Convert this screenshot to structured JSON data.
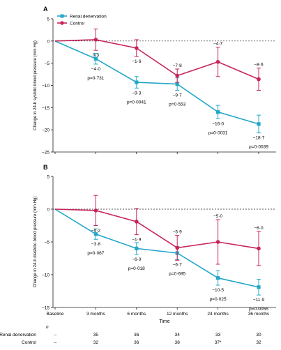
{
  "chart_data": [
    {
      "type": "line",
      "panel_label": "A",
      "ylabel": "Change in 24-h systolic blood pressure (mm Hg)",
      "ylim": [
        -25,
        5
      ],
      "yticks": [
        "5",
        "0",
        "−5",
        "−10",
        "−15",
        "−20",
        "−25"
      ],
      "ytick_values": [
        5,
        0,
        -5,
        -10,
        -15,
        -20,
        -25
      ],
      "reference_line": 0,
      "x": [
        0,
        1,
        2,
        3,
        4,
        5
      ],
      "series": [
        {
          "name": "Renal denervation",
          "color": "#22a7c8",
          "marker": "square",
          "values": [
            0,
            -4.0,
            -9.3,
            -9.7,
            -16.0,
            -18.7
          ],
          "errors": [
            0,
            1.2,
            1.3,
            1.4,
            1.5,
            2.0
          ],
          "labels": [
            "",
            "−4·0",
            "−9·3",
            "−9·7",
            "−16·0",
            "−18·7"
          ]
        },
        {
          "name": "Control",
          "color": "#c8245a",
          "marker": "circle",
          "values": [
            0,
            0.3,
            -1.6,
            -7.8,
            -4.7,
            -8.6
          ],
          "errors": [
            0,
            2.4,
            1.9,
            1.5,
            3.3,
            2.5
          ],
          "labels": [
            "",
            "0·3",
            "−1·6",
            "−7·8",
            "−4·7",
            "−8·6"
          ]
        }
      ],
      "p_values": [
        "",
        "p=0·731",
        "p=0·0041",
        "p=0·553",
        "p=0·0031",
        "p=0·0039"
      ]
    },
    {
      "type": "line",
      "panel_label": "B",
      "ylabel": "Change in 24-h diastolic blood pressure (mm Hg)",
      "ylim": [
        -15,
        5
      ],
      "yticks": [
        "5",
        "0",
        "−5",
        "−10",
        "−15"
      ],
      "ytick_values": [
        5,
        0,
        -5,
        -10,
        -15
      ],
      "reference_line": 0,
      "x": [
        0,
        1,
        2,
        3,
        4,
        5
      ],
      "xticks": [
        "Baseline",
        "3 months",
        "6 months",
        "12 months",
        "24 months",
        "36 months"
      ],
      "xlabel": "Time",
      "series": [
        {
          "name": "Renal denervation",
          "color": "#22a7c8",
          "marker": "square",
          "values": [
            0,
            -3.8,
            -6.0,
            -6.7,
            -10.5,
            -11.9
          ],
          "errors": [
            0,
            0.8,
            0.9,
            1.0,
            1.1,
            1.2
          ],
          "labels": [
            "",
            "−3·8",
            "−6·0",
            "−6·7",
            "−10·5",
            "−11·9"
          ]
        },
        {
          "name": "Control",
          "color": "#c8245a",
          "marker": "circle",
          "values": [
            0,
            -0.2,
            -1.9,
            -5.9,
            -5.0,
            -6.0
          ],
          "errors": [
            0,
            2.3,
            2.0,
            1.9,
            3.4,
            2.6
          ],
          "labels": [
            "",
            "−0·2",
            "−1·9",
            "−5·9",
            "−5·0",
            "−6·0"
          ]
        }
      ],
      "p_values": [
        "",
        "p=0·067",
        "p=0·018",
        "p=0·695",
        "p=0·025",
        "p=0·0055"
      ]
    }
  ],
  "n_table": {
    "header": "n",
    "rows": [
      {
        "label": "Renal denervation",
        "values": [
          "--",
          "35",
          "36",
          "34",
          "33",
          "30"
        ]
      },
      {
        "label": "Control",
        "values": [
          "--",
          "32",
          "36",
          "38",
          "37*",
          "32"
        ]
      }
    ]
  }
}
